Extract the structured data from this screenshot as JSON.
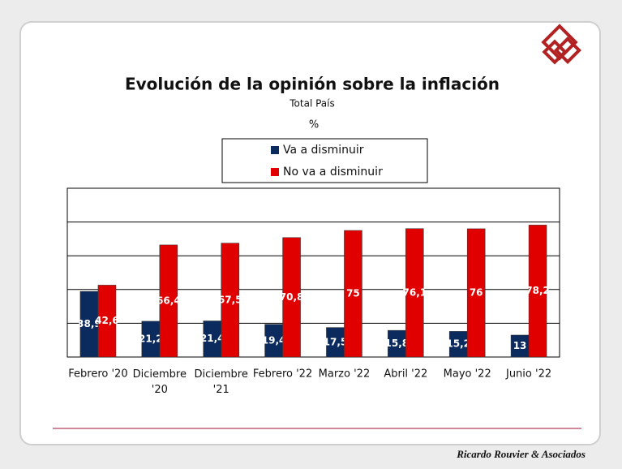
{
  "chart_data": {
    "type": "bar",
    "title": "Evolución de la opinión sobre la inflación",
    "subtitle": "Total País",
    "unit_label": "%",
    "categories": [
      "Febrero '20",
      "Diciembre '20",
      "Diciembre '21",
      "Febrero '22",
      "Marzo '22",
      "Abril '22",
      "Mayo '22",
      "Junio '22"
    ],
    "series": [
      {
        "name": "Va a disminuir",
        "color": "#0b2a5e",
        "values": [
          38.9,
          21.2,
          21.4,
          19.4,
          17.5,
          15.8,
          15.2,
          13
        ],
        "value_labels": [
          "38,9",
          "21,2",
          "21,4",
          "19,4",
          "17,5",
          "15,8",
          "15,2",
          "13"
        ]
      },
      {
        "name": "No va a disminuir",
        "color": "#e00000",
        "values": [
          42.6,
          66.4,
          67.5,
          70.8,
          75,
          76.1,
          76,
          78.2
        ],
        "value_labels": [
          "42,6",
          "66,4",
          "67,5",
          "70,8",
          "75",
          "76,1",
          "76",
          "78,2"
        ]
      }
    ],
    "ylim": [
      0,
      100
    ],
    "yticks": [
      0,
      20,
      40,
      60,
      80,
      100
    ],
    "grid": true,
    "footer": "Ricardo Rouvier & Asociados"
  }
}
